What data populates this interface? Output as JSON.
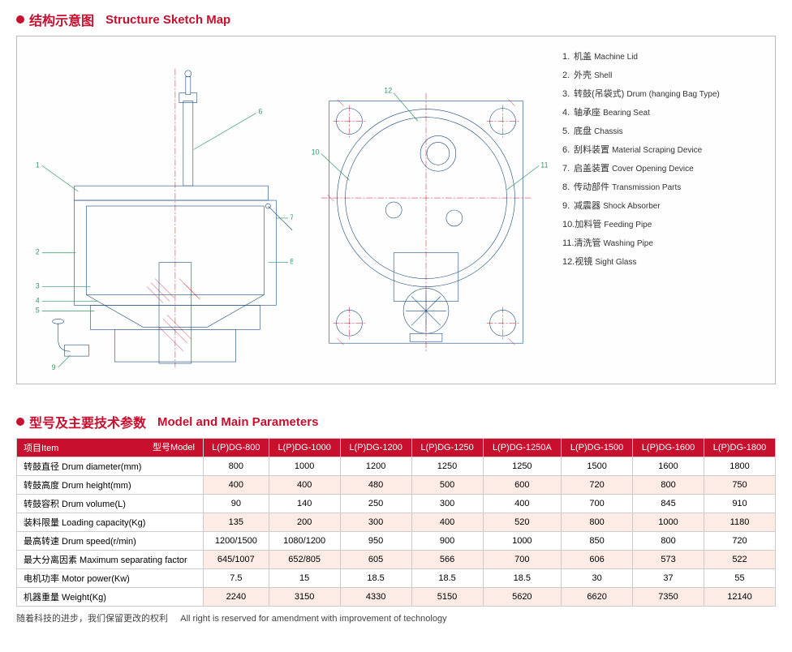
{
  "section1": {
    "cn": "结构示意图",
    "en": "Structure Sketch Map"
  },
  "section2": {
    "cn": "型号及主要技术参数",
    "en": "Model and Main Parameters"
  },
  "legend": [
    {
      "n": "1",
      "cn": "机盖",
      "en": "Machine Lid"
    },
    {
      "n": "2",
      "cn": "外壳",
      "en": "Shell"
    },
    {
      "n": "3",
      "cn": "转鼓(吊袋式)",
      "en": "Drum (hanging Bag Type)"
    },
    {
      "n": "4",
      "cn": "轴承座",
      "en": "Bearing Seat"
    },
    {
      "n": "5",
      "cn": "底盘",
      "en": "Chassis"
    },
    {
      "n": "6",
      "cn": "刮料装置",
      "en": "Material Scraping Device"
    },
    {
      "n": "7",
      "cn": "启盖装置",
      "en": "Cover Opening Device"
    },
    {
      "n": "8",
      "cn": "传动部件",
      "en": "Transmission Parts"
    },
    {
      "n": "9",
      "cn": "减震器",
      "en": "Shock Absorber"
    },
    {
      "n": "10",
      "cn": "加料管",
      "en": "Feeding Pipe"
    },
    {
      "n": "11",
      "cn": "清洗管",
      "en": "Washing Pipe"
    },
    {
      "n": "12",
      "cn": "视镜",
      "en": "Sight Glass"
    }
  ],
  "table": {
    "item_header": "项目Item",
    "model_header": "型号Model",
    "models": [
      "L(P)DG-800",
      "L(P)DG-1000",
      "L(P)DG-1200",
      "L(P)DG-1250",
      "L(P)DG-1250A",
      "L(P)DG-1500",
      "L(P)DG-1600",
      "L(P)DG-1800"
    ],
    "rows": [
      {
        "label": "转鼓直径 Drum diameter(mm)",
        "vals": [
          "800",
          "1000",
          "1200",
          "1250",
          "1250",
          "1500",
          "1600",
          "1800"
        ]
      },
      {
        "label": "转鼓高度 Drum height(mm)",
        "vals": [
          "400",
          "400",
          "480",
          "500",
          "600",
          "720",
          "800",
          "750"
        ]
      },
      {
        "label": "转鼓容积 Drum volume(L)",
        "vals": [
          "90",
          "140",
          "250",
          "300",
          "400",
          "700",
          "845",
          "910"
        ]
      },
      {
        "label": "装料限量 Loading capacity(Kg)",
        "vals": [
          "135",
          "200",
          "300",
          "400",
          "520",
          "800",
          "1000",
          "1180"
        ]
      },
      {
        "label": "最高转速  Drum speed(r/min)",
        "vals": [
          "1200/1500",
          "1080/1200",
          "950",
          "900",
          "1000",
          "850",
          "800",
          "720"
        ]
      },
      {
        "label": "最大分离因素 Maximum separating factor",
        "vals": [
          "645/1007",
          "652/805",
          "605",
          "566",
          "700",
          "606",
          "573",
          "522"
        ]
      },
      {
        "label": "电机功率 Motor power(Kw)",
        "vals": [
          "7.5",
          "15",
          "18.5",
          "18.5",
          "18.5",
          "30",
          "37",
          "55"
        ]
      },
      {
        "label": "机器重量 Weight(Kg)",
        "vals": [
          "2240",
          "3150",
          "4330",
          "5150",
          "5620",
          "6620",
          "7350",
          "12140"
        ]
      }
    ]
  },
  "footnote": {
    "cn": "随着科技的进步，我们保留更改的权利",
    "en": "All right is reserved for amendment with improvement of technology"
  },
  "colors": {
    "brand": "#c8102e",
    "tech": "#1b4a7a",
    "callout": "#396"
  }
}
